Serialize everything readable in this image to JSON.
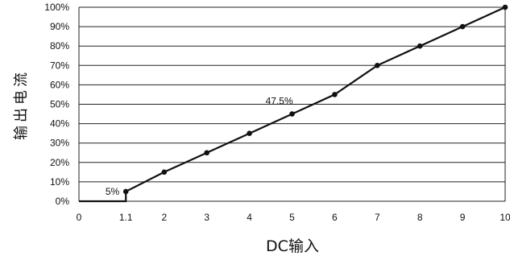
{
  "chart_data": {
    "type": "line",
    "xlabel": "DC输入",
    "ylabel": "输出电流",
    "x_ticks": [
      "0",
      "1.1",
      "2",
      "3",
      "4",
      "5",
      "6",
      "7",
      "8",
      "9",
      "10"
    ],
    "y_ticks": [
      "0%",
      "10%",
      "20%",
      "30%",
      "40%",
      "50%",
      "60%",
      "70%",
      "80%",
      "90%",
      "100%"
    ],
    "xlim": [
      0,
      10
    ],
    "ylim": [
      0,
      100
    ],
    "grid": "horizontal",
    "series": [
      {
        "x": [
          0,
          1.1,
          1.1,
          2,
          3,
          4,
          5,
          6,
          7,
          8,
          9,
          10
        ],
        "y": [
          0,
          0,
          5,
          15,
          25,
          35,
          45,
          55,
          70,
          80,
          90,
          100
        ]
      }
    ],
    "markers": [
      {
        "x": 1.1,
        "y": 5
      },
      {
        "x": 2,
        "y": 15
      },
      {
        "x": 3,
        "y": 25
      },
      {
        "x": 4,
        "y": 35
      },
      {
        "x": 5,
        "y": 45
      },
      {
        "x": 6,
        "y": 55
      },
      {
        "x": 7,
        "y": 70
      },
      {
        "x": 8,
        "y": 80
      },
      {
        "x": 9,
        "y": 90
      },
      {
        "x": 10,
        "y": 100
      }
    ],
    "annotations": [
      {
        "text": "5%",
        "x": 1.1,
        "y": 5
      },
      {
        "text": "47.5%",
        "x": 4.7,
        "y": 47.5
      }
    ]
  }
}
